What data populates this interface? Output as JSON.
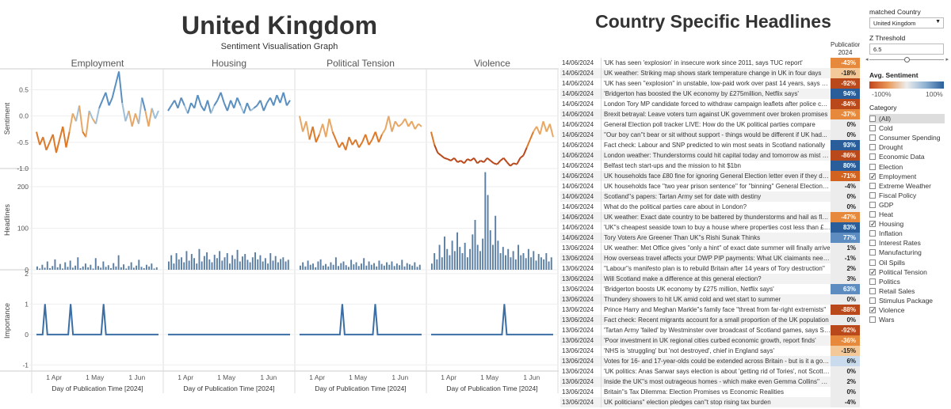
{
  "header": {
    "title": "United Kingdom",
    "subtitle": "Sentiment Visualisation Graph",
    "headlines_title": "Country Specific Headlines"
  },
  "chart_data": {
    "type": "line",
    "columns": [
      "Employment",
      "Housing",
      "Political Tension",
      "Violence"
    ],
    "x_ticks": [
      "1 Apr",
      "1 May",
      "1 Jun"
    ],
    "x_label": "Day of Publication Time [2024]",
    "rows": [
      {
        "name": "Sentiment",
        "yticks": [
          "0.5",
          "0.0",
          "-0.5",
          "-1.0"
        ],
        "ylim": [
          -1.0,
          0.9
        ]
      },
      {
        "name": "Headlines",
        "yticks": [
          "200",
          "100",
          "0"
        ],
        "ylim": [
          0,
          240
        ]
      },
      {
        "name": "Importance",
        "yticks": [
          "2",
          "1",
          "0",
          "-1"
        ],
        "ylim": [
          -1.2,
          2.1
        ]
      }
    ],
    "sentiment_series": {
      "Employment": [
        -0.3,
        -0.55,
        -0.4,
        -0.65,
        -0.5,
        -0.35,
        -0.7,
        -0.45,
        -0.2,
        -0.6,
        -0.3,
        0.05,
        -0.1,
        0.2,
        -0.3,
        -0.4,
        0.1,
        -0.05,
        -0.15,
        0.15,
        0.3,
        0.45,
        0.2,
        0.35,
        0.6,
        0.85,
        0.25,
        -0.1,
        0.1,
        -0.2,
        0.05,
        -0.15,
        0.35,
        0.1,
        -0.2,
        0.15,
        -0.05,
        0.1
      ],
      "Housing": [
        0.1,
        0.2,
        0.3,
        0.15,
        0.35,
        0.2,
        0.05,
        0.25,
        0.15,
        0.4,
        0.2,
        0.1,
        0.3,
        0.05,
        0.2,
        0.3,
        0.45,
        0.25,
        0.1,
        0.3,
        0.15,
        0.35,
        0.2,
        0.05,
        0.25,
        0.1,
        0.15,
        0.2,
        0.3,
        0.1,
        0.25,
        0.35,
        0.2,
        0.4,
        0.25,
        0.45,
        0.2,
        0.3
      ],
      "Political Tension": [
        0.0,
        -0.3,
        -0.1,
        -0.45,
        -0.2,
        -0.5,
        -0.35,
        -0.15,
        -0.4,
        -0.05,
        -0.3,
        -0.45,
        -0.6,
        -0.5,
        -0.65,
        -0.4,
        -0.55,
        -0.45,
        -0.6,
        -0.5,
        -0.35,
        -0.55,
        -0.45,
        -0.3,
        -0.5,
        -0.35,
        -0.25,
        0.0,
        -0.3,
        -0.1,
        -0.2,
        -0.15,
        -0.05,
        -0.2,
        -0.1,
        -0.25,
        -0.15,
        -0.2
      ],
      "Violence": [
        -0.3,
        -0.55,
        -0.7,
        -0.75,
        -0.8,
        -0.82,
        -0.85,
        -0.8,
        -0.88,
        -0.85,
        -0.9,
        -0.82,
        -0.85,
        -0.8,
        -0.9,
        -0.85,
        -0.88,
        -0.8,
        -0.85,
        -0.9,
        -0.92,
        -0.85,
        -0.8,
        -0.88,
        -0.95,
        -0.9,
        -0.92,
        -0.8,
        -0.75,
        -0.6,
        -0.45,
        -0.3,
        -0.2,
        -0.35,
        -0.1,
        -0.3,
        -0.15,
        -0.4
      ]
    },
    "headline_counts": {
      "Employment": [
        8,
        3,
        12,
        5,
        20,
        4,
        9,
        25,
        6,
        14,
        3,
        18,
        7,
        22,
        5,
        10,
        30,
        4,
        8,
        15,
        6,
        12,
        3,
        28,
        9,
        5,
        20,
        7,
        11,
        4,
        16,
        8,
        35,
        6,
        13,
        3,
        9,
        18,
        5,
        10,
        24,
        7,
        4,
        12,
        8,
        15,
        3,
        6
      ],
      "Housing": [
        20,
        35,
        15,
        40,
        25,
        30,
        18,
        45,
        22,
        38,
        28,
        15,
        50,
        20,
        33,
        42,
        25,
        18,
        36,
        28,
        45,
        22,
        30,
        40,
        15,
        35,
        26,
        48,
        20,
        32,
        38,
        24,
        18,
        30,
        42,
        25,
        35,
        20,
        28,
        15,
        40,
        22,
        33,
        18,
        26,
        30,
        20,
        24
      ],
      "Political Tension": [
        10,
        18,
        8,
        22,
        12,
        15,
        6,
        20,
        25,
        10,
        14,
        8,
        18,
        12,
        30,
        9,
        16,
        20,
        11,
        7,
        24,
        13,
        18,
        9,
        15,
        28,
        10,
        20,
        12,
        16,
        8,
        22,
        14,
        10,
        18,
        12,
        20,
        9,
        15,
        11,
        24,
        8,
        16,
        13,
        10,
        18,
        7,
        12
      ],
      "Violence": [
        15,
        40,
        25,
        60,
        30,
        80,
        50,
        35,
        70,
        45,
        90,
        55,
        40,
        65,
        30,
        50,
        85,
        120,
        60,
        45,
        75,
        235,
        180,
        95,
        60,
        130,
        70,
        40,
        55,
        35,
        50,
        30,
        45,
        25,
        60,
        35,
        40,
        28,
        50,
        30,
        45,
        22,
        38,
        30,
        25,
        40,
        20,
        30
      ]
    },
    "importance_spikes": {
      "Employment": [
        0.07,
        0.28,
        0.55
      ],
      "Housing": [],
      "Political Tension": [
        0.35,
        0.62
      ],
      "Violence": [
        0.6
      ]
    }
  },
  "table": {
    "column_header": "Publication...",
    "column_subheader": "2024",
    "rows": [
      {
        "date": "14/06/2024",
        "headline": "'UK has seen 'explosion' in insecure work since 2011, says TUC report'",
        "pct": "-43%",
        "val": -43
      },
      {
        "date": "14/06/2024",
        "headline": "UK weather: Striking map shows stark temperature change in UK in four days",
        "pct": "-18%",
        "val": -18
      },
      {
        "date": "14/06/2024",
        "headline": "'UK has seen ''explosion'' in unstable, low-paid work over past 14 years, says TUC'",
        "pct": "-92%",
        "val": -92
      },
      {
        "date": "14/06/2024",
        "headline": "'Bridgerton has boosted the UK economy by £275million, Netflix says'",
        "pct": "94%",
        "val": 94
      },
      {
        "date": "14/06/2024",
        "headline": "London Tory MP candidate forced to withdraw campaign leaflets after police complaint",
        "pct": "-84%",
        "val": -84
      },
      {
        "date": "14/06/2024",
        "headline": "Brexit betrayal: Leave voters turn against UK government over broken promises",
        "pct": "-37%",
        "val": -37
      },
      {
        "date": "14/06/2024",
        "headline": "General Election poll tracker LIVE: How do the UK political parties compare",
        "pct": "0%",
        "val": 0
      },
      {
        "date": "14/06/2024",
        "headline": "''Our boy can''t bear or sit without support - things would be different if UK had...",
        "pct": "0%",
        "val": 0
      },
      {
        "date": "14/06/2024",
        "headline": "Fact check: Labour and SNP predicted to win most seats in Scotland nationally",
        "pct": "93%",
        "val": 93
      },
      {
        "date": "14/06/2024",
        "headline": "London weather: Thunderstorms could hit capital today and tomorrow as mist warning",
        "pct": "-86%",
        "val": -86
      },
      {
        "date": "14/06/2024",
        "headline": "Belfast tech start-ups and the mission to hit $1bn",
        "pct": "80%",
        "val": 80
      },
      {
        "date": "14/06/2024",
        "headline": "UK households face £80 fine for ignoring General Election letter even if they don't vote",
        "pct": "-71%",
        "val": -71
      },
      {
        "date": "14/06/2024",
        "headline": "UK households face ''two year prison sentence'' for ''binning'' General Election letter",
        "pct": "-4%",
        "val": -4
      },
      {
        "date": "14/06/2024",
        "headline": "Scotland''s papers: Tartan Army set for date with destiny",
        "pct": "0%",
        "val": 0
      },
      {
        "date": "14/06/2024",
        "headline": "What do the political parties care about in London?",
        "pct": "0%",
        "val": 0
      },
      {
        "date": "14/06/2024",
        "headline": "UK weather: Exact date country to be battered by thunderstorms and hail as flood alerts",
        "pct": "-47%",
        "val": -47
      },
      {
        "date": "14/06/2024",
        "headline": "'UK''s cheapest seaside town to buy a house where properties cost less than £100k'",
        "pct": "83%",
        "val": 83
      },
      {
        "date": "14/06/2024",
        "headline": "Tory Voters Are Greener Than UK''s Rishi Sunak Thinks",
        "pct": "77%",
        "val": 77
      },
      {
        "date": "13/06/2024",
        "headline": "UK weather: Met Office gives ''only a hint'' of exact date summer will finally arrive",
        "pct": "1%",
        "val": 1
      },
      {
        "date": "13/06/2024",
        "headline": "How overseas travel affects your DWP PIP payments: What UK claimants need to know",
        "pct": "-1%",
        "val": -1
      },
      {
        "date": "13/06/2024",
        "headline": "''Labour''s manifesto plan is to rebuild Britain after 14 years of Tory destruction''",
        "pct": "2%",
        "val": 2
      },
      {
        "date": "13/06/2024",
        "headline": "Will Scotland make a difference at this general election?",
        "pct": "3%",
        "val": 3
      },
      {
        "date": "13/06/2024",
        "headline": "'Bridgerton boosts UK economy by £275 million, Netflix says'",
        "pct": "63%",
        "val": 63
      },
      {
        "date": "13/06/2024",
        "headline": "Thundery showers to hit UK amid cold and wet start to summer",
        "pct": "0%",
        "val": 0
      },
      {
        "date": "13/06/2024",
        "headline": "Prince Harry and Meghan Markle''s family face ''threat from far-right extremists''",
        "pct": "-88%",
        "val": -88
      },
      {
        "date": "13/06/2024",
        "headline": "Fact check: Recent migrants account for a small proportion of the UK population",
        "pct": "0%",
        "val": 0
      },
      {
        "date": "13/06/2024",
        "headline": "'Tartan Army 'failed' by Westminster over broadcast of Scotland games, says SNP'",
        "pct": "-92%",
        "val": -92
      },
      {
        "date": "13/06/2024",
        "headline": "'Poor investment in UK regional cities curbed economic growth, report finds'",
        "pct": "-36%",
        "val": -36
      },
      {
        "date": "13/06/2024",
        "headline": "'NHS is 'struggling' but 'not destroyed', chief in England says'",
        "pct": "-15%",
        "val": -15
      },
      {
        "date": "13/06/2024",
        "headline": "Votes for 16- and 17-year-olds could be extended across Britain - but is it a good idea?",
        "pct": "6%",
        "val": 6
      },
      {
        "date": "13/06/2024",
        "headline": "'UK politics: Anas Sarwar says election is about 'getting rid of Tories', not Scottish...",
        "pct": "0%",
        "val": 0
      },
      {
        "date": "13/06/2024",
        "headline": "Inside the UK''s most outrageous homes - which make even Gemma Collins'' proud",
        "pct": "2%",
        "val": 2
      },
      {
        "date": "13/06/2024",
        "headline": "Britain''s Tax Dilemma: Election Promises vs Economic Realities",
        "pct": "0%",
        "val": 0
      },
      {
        "date": "13/06/2024",
        "headline": "UK politicians'' election pledges can''t stop rising tax burden",
        "pct": "-4%",
        "val": -4
      }
    ]
  },
  "filters": {
    "matched_country_label": "matched Country",
    "matched_country_value": "United Kingdom",
    "z_threshold_label": "Z Threshold",
    "z_threshold_value": "6.5",
    "z_threshold_fraction": 0.5,
    "avg_sentiment_label": "Avg. Sentiment",
    "avg_min": "-100%",
    "avg_max": "100%",
    "category_label": "Category",
    "categories": [
      {
        "name": "(All)",
        "checked": false,
        "highlight": true
      },
      {
        "name": "Cold",
        "checked": false
      },
      {
        "name": "Consumer Spending",
        "checked": false
      },
      {
        "name": "Drought",
        "checked": false
      },
      {
        "name": "Economic Data",
        "checked": false
      },
      {
        "name": "Election",
        "checked": false
      },
      {
        "name": "Employment",
        "checked": true
      },
      {
        "name": "Extreme Weather",
        "checked": false
      },
      {
        "name": "Fiscal Policy",
        "checked": false
      },
      {
        "name": "GDP",
        "checked": false
      },
      {
        "name": "Heat",
        "checked": false
      },
      {
        "name": "Housing",
        "checked": true
      },
      {
        "name": "Inflation",
        "checked": false
      },
      {
        "name": "Interest Rates",
        "checked": false
      },
      {
        "name": "Manufacturing",
        "checked": false
      },
      {
        "name": "Oil Spills",
        "checked": false
      },
      {
        "name": "Political Tension",
        "checked": true
      },
      {
        "name": "Politics",
        "checked": false
      },
      {
        "name": "Retail Sales",
        "checked": false
      },
      {
        "name": "Stimulus Package",
        "checked": false
      },
      {
        "name": "Violence",
        "checked": true
      },
      {
        "name": "Wars",
        "checked": false
      }
    ]
  },
  "colors": {
    "positive": "#2f6aa8",
    "negative": "#d2551a",
    "bars": "#5b7ea3",
    "importance": "#3a6ea5"
  }
}
